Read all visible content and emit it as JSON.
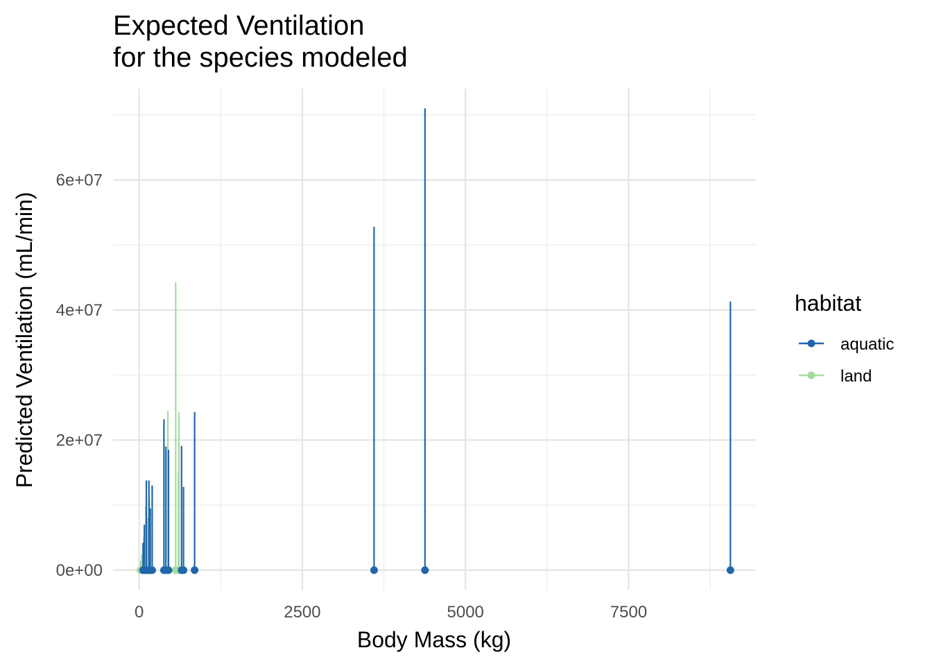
{
  "chart_data": {
    "type": "scatter",
    "title_lines": [
      "Expected Ventilation",
      "for the species modeled"
    ],
    "xlabel": "Body Mass (kg)",
    "ylabel": "Predicted Ventilation (mL/min)",
    "xlim": [
      -400,
      9450
    ],
    "ylim": [
      -3000000,
      74000000
    ],
    "x_ticks": [
      0,
      2500,
      5000,
      7500
    ],
    "x_tick_labels": [
      "0",
      "2500",
      "5000",
      "7500"
    ],
    "y_ticks": [
      0,
      20000000,
      40000000,
      60000000
    ],
    "y_tick_labels": [
      "0e+00",
      "2e+07",
      "4e+07",
      "6e+07"
    ],
    "grid": true,
    "legend": {
      "title": "habitat",
      "position": "right",
      "entries": [
        {
          "label": "aquatic",
          "color": "#2166ac"
        },
        {
          "label": "land",
          "color": "#a6dba0"
        }
      ]
    },
    "series": [
      {
        "name": "aquatic",
        "color": "#2166ac",
        "points": [
          {
            "x": 60,
            "y": 4200000
          },
          {
            "x": 80,
            "y": 7000000
          },
          {
            "x": 110,
            "y": 13800000
          },
          {
            "x": 150,
            "y": 13800000
          },
          {
            "x": 170,
            "y": 9500000
          },
          {
            "x": 200,
            "y": 13000000
          },
          {
            "x": 380,
            "y": 23200000
          },
          {
            "x": 410,
            "y": 19000000
          },
          {
            "x": 450,
            "y": 18500000
          },
          {
            "x": 650,
            "y": 19100000
          },
          {
            "x": 680,
            "y": 12800000
          },
          {
            "x": 850,
            "y": 24300000
          },
          {
            "x": 3600,
            "y": 52800000
          },
          {
            "x": 4380,
            "y": 71000000
          },
          {
            "x": 9060,
            "y": 41300000
          }
        ]
      },
      {
        "name": "land",
        "color": "#a6dba0",
        "points": [
          {
            "x": 20,
            "y": 1500000
          },
          {
            "x": 40,
            "y": 2500000
          },
          {
            "x": 70,
            "y": 5200000
          },
          {
            "x": 100,
            "y": 9800000
          },
          {
            "x": 130,
            "y": 8000000
          },
          {
            "x": 160,
            "y": 11200000
          },
          {
            "x": 440,
            "y": 24500000
          },
          {
            "x": 560,
            "y": 44300000
          },
          {
            "x": 600,
            "y": 15000000
          },
          {
            "x": 610,
            "y": 24300000
          }
        ]
      }
    ]
  }
}
